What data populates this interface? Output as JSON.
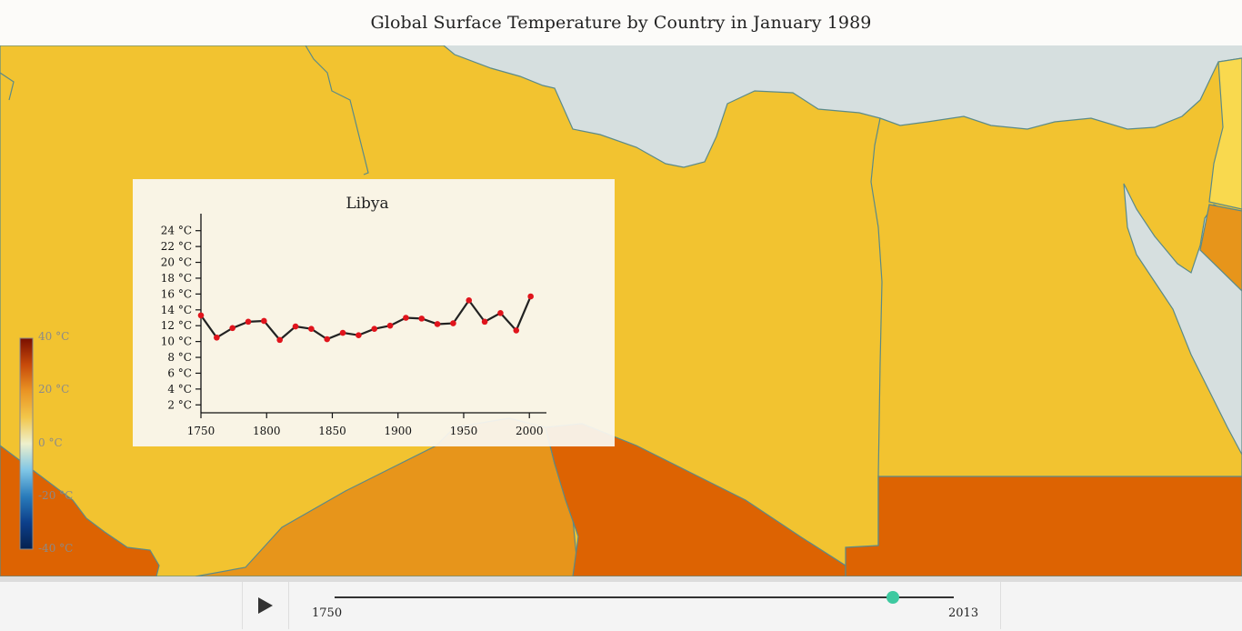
{
  "header": {
    "title": "Global Surface Temperature by Country in January 1989"
  },
  "colors": {
    "sea": "#d6dfdf",
    "border": "#5b8a88",
    "yellow": "#f2c330",
    "light_yellow": "#f9d94e",
    "orange": "#e7951b",
    "dark_orange": "#dd6302",
    "accent": "#3ec9a0"
  },
  "legend": {
    "labels": [
      "40 °C",
      "20 °C",
      "0 °C",
      "-20 °C",
      "-40 °C"
    ],
    "stops": [
      "#7a0f00",
      "#c74a0a",
      "#ea9424",
      "#f2c64a",
      "#eef0cc",
      "#7fc6e6",
      "#2a7cbb",
      "#0c3f8a",
      "#06214f"
    ]
  },
  "popup": {
    "country": "Libya",
    "y_ticks": [
      "24 °C",
      "22 °C",
      "20 °C",
      "18 °C",
      "16 °C",
      "14 °C",
      "12 °C",
      "10 °C",
      "8 °C",
      "6 °C",
      "4 °C",
      "2 °C"
    ],
    "x_ticks": [
      "1750",
      "1800",
      "1850",
      "1900",
      "1950",
      "2000"
    ]
  },
  "chart_data": {
    "type": "line",
    "title": "Libya",
    "xlim": [
      1750,
      2013
    ],
    "ylim": [
      1,
      25
    ],
    "x": [
      1750,
      1762,
      1774,
      1786,
      1798,
      1810,
      1822,
      1834,
      1846,
      1858,
      1870,
      1882,
      1894,
      1906,
      1918,
      1930,
      1942,
      1954,
      1966,
      1978,
      1990,
      2001
    ],
    "values": [
      13.3,
      10.5,
      11.7,
      12.5,
      12.6,
      10.2,
      11.9,
      11.6,
      10.3,
      11.1,
      10.8,
      11.6,
      12.0,
      13.0,
      12.9,
      12.2,
      12.3,
      15.2,
      12.5,
      13.6,
      11.4,
      15.7
    ],
    "line_color": "#222222",
    "point_color": "#e0141c"
  },
  "controls": {
    "start_year": "1750",
    "end_year": "2013",
    "current_fraction": 0.902
  }
}
